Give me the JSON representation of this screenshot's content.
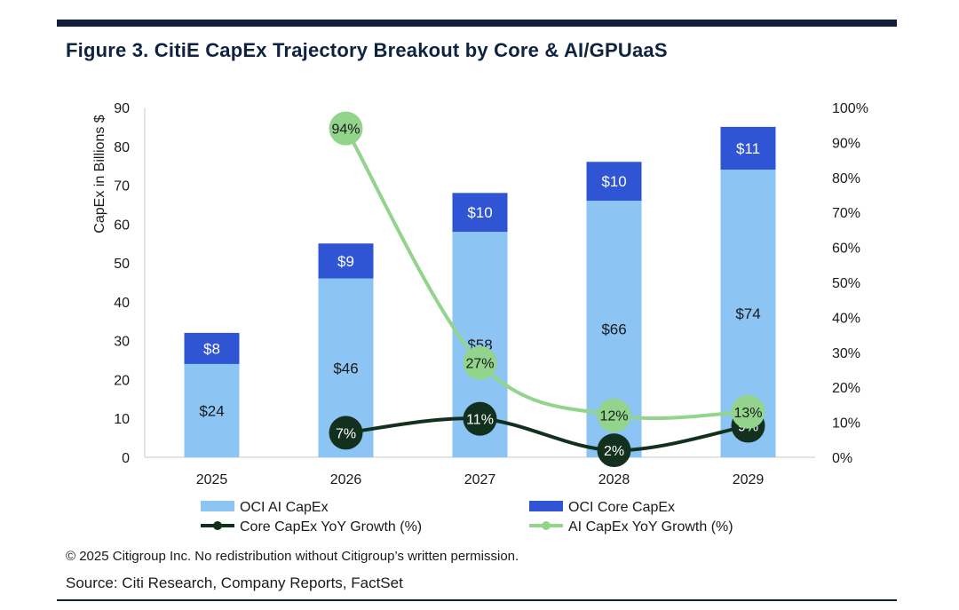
{
  "title": "Figure 3. CitiE CapEx Trajectory Breakout by Core & AI/GPUaaS",
  "copyright": "© 2025 Citigroup Inc. No redistribution without Citigroup’s written permission.",
  "source": "Source: Citi Research, Company Reports, FactSet",
  "colors": {
    "ai_capex": "#8cc4f4",
    "core_capex": "#2f55d4",
    "core_growth": "#12301d",
    "ai_growth": "#92d48c",
    "title": "#0f2340"
  },
  "chart_data": {
    "type": "bar",
    "stacked": true,
    "categories": [
      "2025",
      "2026",
      "2027",
      "2028",
      "2029"
    ],
    "ylabel": "CapEx in Billions $",
    "ylim": [
      0,
      90
    ],
    "yticks": [
      "0",
      "10",
      "20",
      "30",
      "40",
      "50",
      "60",
      "70",
      "80",
      "90"
    ],
    "y2lim": [
      0,
      100
    ],
    "y2ticks": [
      "0%",
      "10%",
      "20%",
      "30%",
      "40%",
      "50%",
      "60%",
      "70%",
      "80%",
      "90%",
      "100%"
    ],
    "series": [
      {
        "name": "OCI AI CapEx",
        "kind": "bar",
        "values": [
          24,
          46,
          58,
          66,
          74
        ],
        "labels": [
          "$24",
          "$46",
          "$58",
          "$66",
          "$74"
        ]
      },
      {
        "name": "OCI Core CapEx",
        "kind": "bar",
        "values": [
          8,
          9,
          10,
          10,
          11
        ],
        "labels": [
          "$8",
          "$9",
          "$10",
          "$10",
          "$11"
        ]
      },
      {
        "name": "Core CapEx YoY Growth (%)",
        "kind": "line",
        "axis": "right",
        "values": [
          null,
          7,
          11,
          2,
          9
        ],
        "labels": [
          "",
          "7%",
          "11%",
          "2%",
          "9%"
        ]
      },
      {
        "name": "AI CapEx YoY Growth (%)",
        "kind": "line",
        "axis": "right",
        "values": [
          null,
          94,
          27,
          12,
          13
        ],
        "labels": [
          "",
          "94%",
          "27%",
          "12%",
          "13%"
        ]
      }
    ],
    "legend": [
      "OCI AI CapEx",
      "OCI Core CapEx",
      "Core CapEx YoY Growth (%)",
      "AI CapEx YoY Growth (%)"
    ],
    "legend_position": "bottom"
  }
}
